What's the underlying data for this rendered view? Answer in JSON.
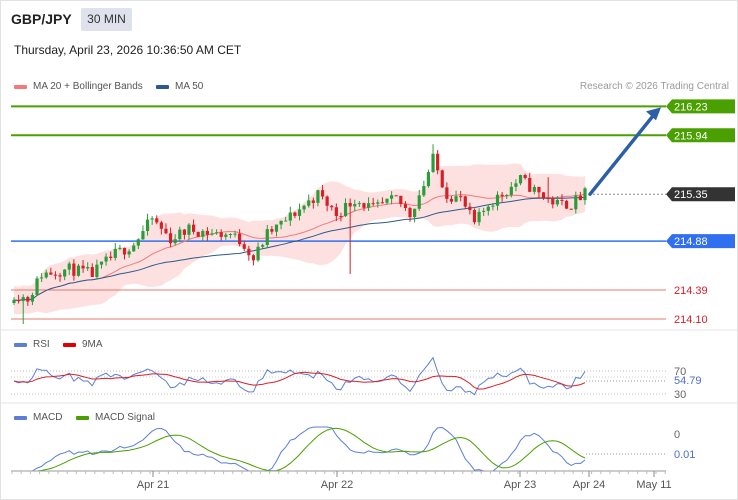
{
  "header": {
    "symbol": "GBP/JPY",
    "timeframe": "30 MIN",
    "timestamp": "Thursday, April 23, 2026 10:36:50 AM CET"
  },
  "credit": "Research © 2026 Trading Central",
  "legend_main": [
    {
      "label": "MA 20 + Bollinger Bands",
      "color": "#f47a7a"
    },
    {
      "label": "MA 50",
      "color": "#2d5a8c"
    }
  ],
  "legend_rsi": [
    {
      "label": "RSI",
      "color": "#5b7fd6"
    },
    {
      "label": "9MA",
      "color": "#e00000"
    }
  ],
  "legend_macd": [
    {
      "label": "MACD",
      "color": "#5b7fd6"
    },
    {
      "label": "MACD Signal",
      "color": "#4aa000"
    }
  ],
  "colors": {
    "up_candle": "#2a9d3a",
    "down_candle": "#d81f26",
    "bollinger_fill": "#fde1e1",
    "resistance": "#4aa000",
    "pivot": "#2f6ff0",
    "support": "#e8786e",
    "arrow": "#2d5ea8",
    "last_price_box": "#333333"
  },
  "chart_data": {
    "type": "candlestick",
    "instrument": "GBP/JPY",
    "interval": "30 MIN",
    "x_labels": [
      "Apr 21",
      "Apr 22",
      "Apr 23",
      "Apr 24",
      "May 11"
    ],
    "y_range": [
      214.0,
      216.35
    ],
    "price_levels": [
      {
        "value": 216.23,
        "kind": "resistance"
      },
      {
        "value": 215.94,
        "kind": "resistance"
      },
      {
        "value": 215.35,
        "kind": "last"
      },
      {
        "value": 214.88,
        "kind": "pivot"
      },
      {
        "value": 214.39,
        "kind": "support"
      },
      {
        "value": 214.1,
        "kind": "support"
      }
    ],
    "projection": {
      "from": 215.35,
      "to": 216.23
    },
    "rsi": {
      "levels": [
        70,
        30
      ],
      "last_value": 54.79
    },
    "macd": {
      "levels": [
        0
      ],
      "last_value": 0.01
    }
  },
  "labels": {
    "rsi_70": "70",
    "rsi_30": "30",
    "rsi_value": "54.79",
    "macd_zero": "0",
    "macd_value": "0.01"
  }
}
